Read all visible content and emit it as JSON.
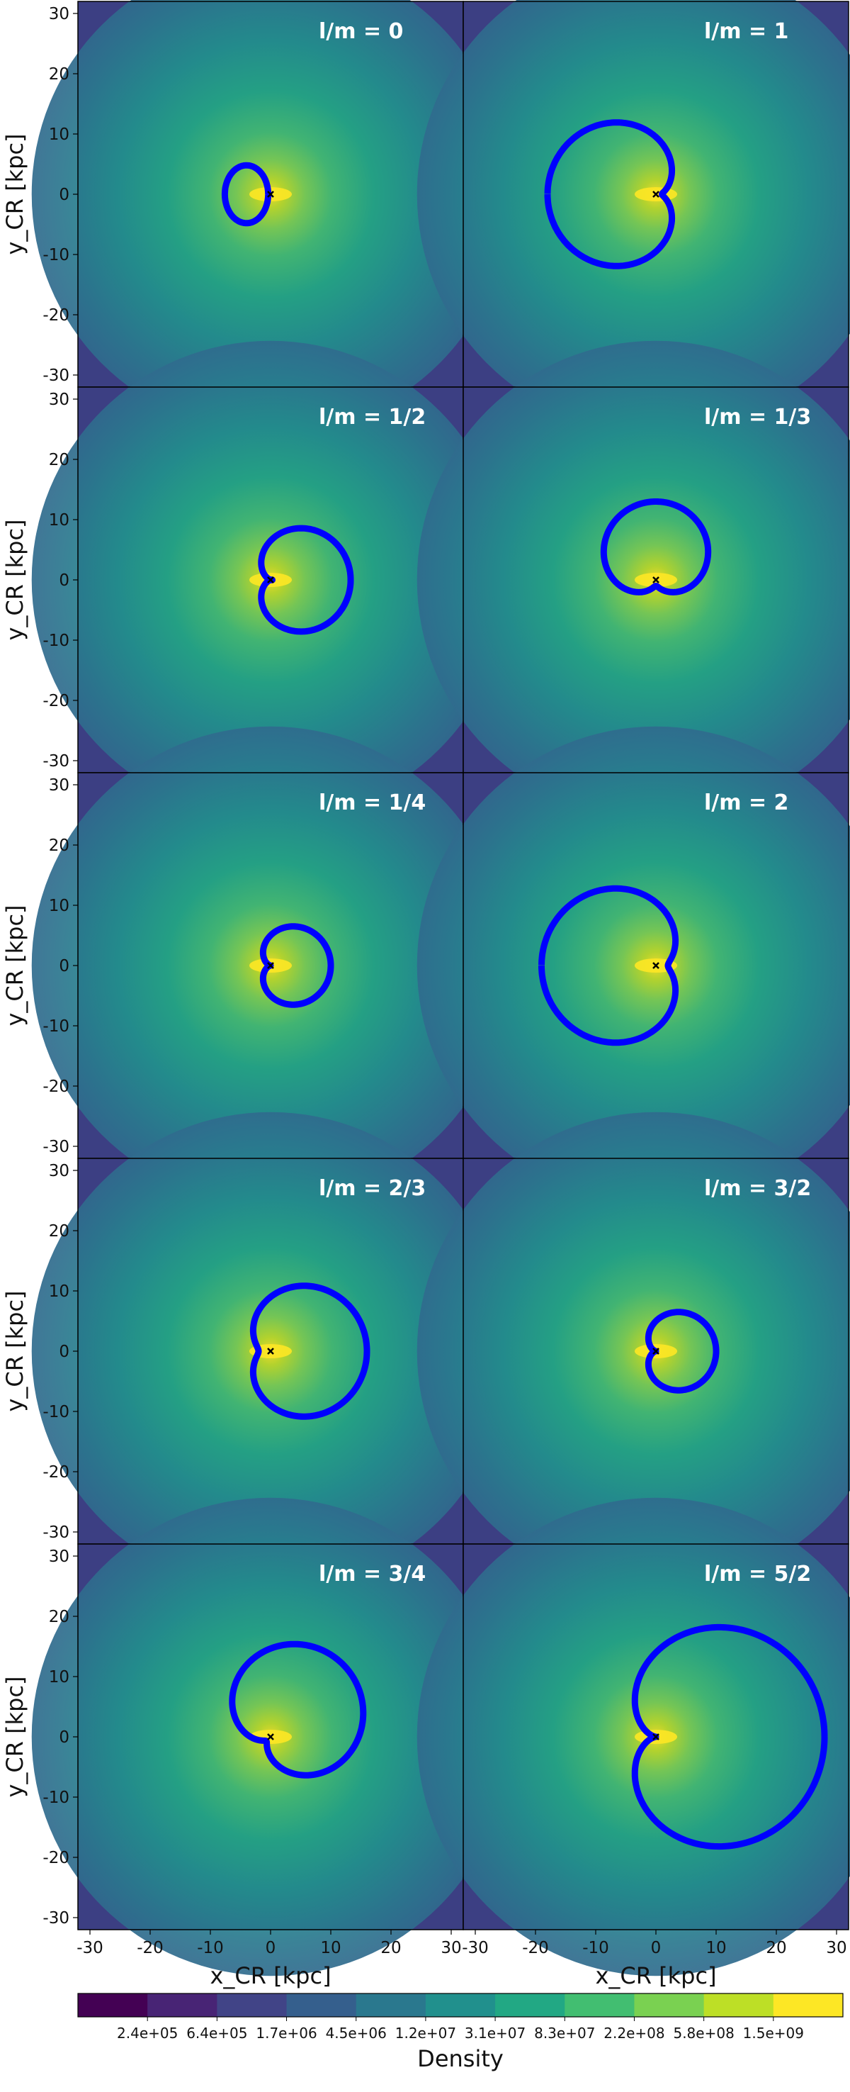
{
  "chart_data": {
    "type": "contour-orbit-grid",
    "panel_grid": {
      "rows": 5,
      "cols": 2
    },
    "xlabel": "x_CR [kpc]",
    "ylabel": "y_CR [kpc]",
    "xlim": [
      -32,
      32
    ],
    "ylim": [
      -32,
      32
    ],
    "ticks": [
      -30,
      -20,
      -10,
      0,
      10,
      20,
      30
    ],
    "orbit_color": "#0000ff",
    "panels": [
      {
        "title": "l/m  = 0",
        "orbit": "small single loop left of center",
        "params": {
          "kind": "ellipse",
          "cx": -4,
          "cy": 0,
          "rx": 3.6,
          "ry": 4.8
        }
      },
      {
        "title": "l/m  = 1",
        "orbit": "large circle with inner kidney loop",
        "params": {
          "kind": "loop",
          "lobes": 1,
          "A": 9.5,
          "B": 8.5,
          "rot": 180,
          "off": [
            0,
            0
          ]
        }
      },
      {
        "title": "l/m  = 1/2",
        "orbit": "two-lobed figure inside outer ring",
        "params": {
          "kind": "loop",
          "lobes": 2,
          "A": 6.5,
          "B": 6.8,
          "rot": 0,
          "off": [
            0,
            0
          ]
        }
      },
      {
        "title": "l/m  = 1/3",
        "orbit": "three-lobed rosette",
        "params": {
          "kind": "loop",
          "lobes": 3,
          "A": 7,
          "B": 6,
          "rot": 90,
          "off": [
            0,
            0
          ]
        }
      },
      {
        "title": "l/m  = 1/4",
        "orbit": "four-lobed rosette",
        "params": {
          "kind": "loop",
          "lobes": 4,
          "A": 5,
          "B": 5,
          "rot": 0,
          "off": [
            0,
            0
          ]
        }
      },
      {
        "title": "l/m  = 2",
        "orbit": "large circle with inner kidney loop",
        "params": {
          "kind": "loop",
          "lobes": 1,
          "A": 10.5,
          "B": 8.5,
          "rot": 180,
          "off": [
            0,
            0
          ]
        }
      },
      {
        "title": "l/m  = 2/3",
        "orbit": "three-lobed rosette inside outer ring",
        "params": {
          "kind": "loop",
          "lobes": 3,
          "A": 9,
          "B": 7,
          "rot": 0,
          "off": [
            0,
            0
          ]
        }
      },
      {
        "title": "l/m  = 3/2",
        "orbit": "thin double-loop figure",
        "params": {
          "kind": "loop",
          "lobes": 2,
          "A": 5,
          "B": 5,
          "rot": 0,
          "off": [
            0,
            0
          ]
        }
      },
      {
        "title": "l/m  = 3/4",
        "orbit": "thin four-lobed rosette inside ring",
        "params": {
          "kind": "loop",
          "lobes": 4,
          "A": 9,
          "B": 8,
          "rot": 45,
          "off": [
            0,
            0
          ]
        }
      },
      {
        "title": "l/m  = 5/2",
        "orbit": "wide nested loops filling panel",
        "params": {
          "kind": "loop",
          "lobes": 2,
          "A": 14,
          "B": 14,
          "rot": 0,
          "off": [
            0,
            0
          ]
        }
      }
    ],
    "colorbar": {
      "label": "Density",
      "tick_labels": [
        "2.4e+05",
        "6.4e+05",
        "1.7e+06",
        "4.5e+06",
        "1.2e+07",
        "3.1e+07",
        "8.3e+07",
        "2.2e+08",
        "5.8e+08",
        "1.5e+09"
      ],
      "colors": [
        "#440154",
        "#482475",
        "#414487",
        "#355f8d",
        "#2a788e",
        "#21908d",
        "#22a884",
        "#42be71",
        "#7ad151",
        "#bddf26",
        "#fde725"
      ]
    }
  }
}
